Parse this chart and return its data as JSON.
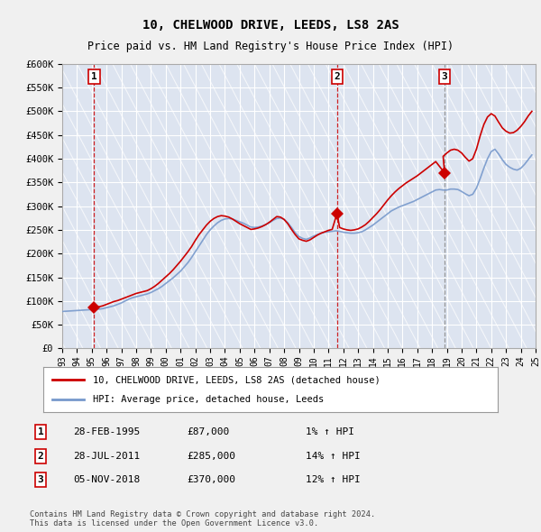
{
  "title": "10, CHELWOOD DRIVE, LEEDS, LS8 2AS",
  "subtitle": "Price paid vs. HM Land Registry's House Price Index (HPI)",
  "ylim": [
    0,
    600000
  ],
  "yticks": [
    0,
    50000,
    100000,
    150000,
    200000,
    250000,
    300000,
    350000,
    400000,
    450000,
    500000,
    550000,
    600000
  ],
  "ytick_labels": [
    "£0",
    "£50K",
    "£100K",
    "£150K",
    "£200K",
    "£250K",
    "£300K",
    "£350K",
    "£400K",
    "£450K",
    "£500K",
    "£550K",
    "£600K"
  ],
  "background_color": "#f0f0f0",
  "plot_bg_color": "#dde4f0",
  "grid_color": "#ffffff",
  "hpi_color": "#7799cc",
  "price_color": "#cc0000",
  "sale_points": [
    {
      "year": 1995.16,
      "price": 87000,
      "label": "1",
      "vline_color": "#cc0000",
      "vline_style": "--"
    },
    {
      "year": 2011.58,
      "price": 285000,
      "label": "2",
      "vline_color": "#cc0000",
      "vline_style": "--"
    },
    {
      "year": 2018.85,
      "price": 370000,
      "label": "3",
      "vline_color": "#888888",
      "vline_style": "--"
    }
  ],
  "legend_house_label": "10, CHELWOOD DRIVE, LEEDS, LS8 2AS (detached house)",
  "legend_hpi_label": "HPI: Average price, detached house, Leeds",
  "table_rows": [
    {
      "num": "1",
      "date": "28-FEB-1995",
      "price": "£87,000",
      "hpi": "1% ↑ HPI"
    },
    {
      "num": "2",
      "date": "28-JUL-2011",
      "price": "£285,000",
      "hpi": "14% ↑ HPI"
    },
    {
      "num": "3",
      "date": "05-NOV-2018",
      "price": "£370,000",
      "hpi": "12% ↑ HPI"
    }
  ],
  "footnote": "Contains HM Land Registry data © Crown copyright and database right 2024.\nThis data is licensed under the Open Government Licence v3.0.",
  "hpi_data_years": [
    1993.0,
    1993.25,
    1993.5,
    1993.75,
    1994.0,
    1994.25,
    1994.5,
    1994.75,
    1995.0,
    1995.25,
    1995.5,
    1995.75,
    1996.0,
    1996.25,
    1996.5,
    1996.75,
    1997.0,
    1997.25,
    1997.5,
    1997.75,
    1998.0,
    1998.25,
    1998.5,
    1998.75,
    1999.0,
    1999.25,
    1999.5,
    1999.75,
    2000.0,
    2000.25,
    2000.5,
    2000.75,
    2001.0,
    2001.25,
    2001.5,
    2001.75,
    2002.0,
    2002.25,
    2002.5,
    2002.75,
    2003.0,
    2003.25,
    2003.5,
    2003.75,
    2004.0,
    2004.25,
    2004.5,
    2004.75,
    2005.0,
    2005.25,
    2005.5,
    2005.75,
    2006.0,
    2006.25,
    2006.5,
    2006.75,
    2007.0,
    2007.25,
    2007.5,
    2007.75,
    2008.0,
    2008.25,
    2008.5,
    2008.75,
    2009.0,
    2009.25,
    2009.5,
    2009.75,
    2010.0,
    2010.25,
    2010.5,
    2010.75,
    2011.0,
    2011.25,
    2011.5,
    2011.75,
    2012.0,
    2012.25,
    2012.5,
    2012.75,
    2013.0,
    2013.25,
    2013.5,
    2013.75,
    2014.0,
    2014.25,
    2014.5,
    2014.75,
    2015.0,
    2015.25,
    2015.5,
    2015.75,
    2016.0,
    2016.25,
    2016.5,
    2016.75,
    2017.0,
    2017.25,
    2017.5,
    2017.75,
    2018.0,
    2018.25,
    2018.5,
    2018.75,
    2019.0,
    2019.25,
    2019.5,
    2019.75,
    2020.0,
    2020.25,
    2020.5,
    2020.75,
    2021.0,
    2021.25,
    2021.5,
    2021.75,
    2022.0,
    2022.25,
    2022.5,
    2022.75,
    2023.0,
    2023.25,
    2023.5,
    2023.75,
    2024.0,
    2024.25,
    2024.5,
    2024.75
  ],
  "hpi_data_values": [
    78000,
    78500,
    79000,
    79500,
    80000,
    80500,
    81000,
    81500,
    82000,
    82500,
    83000,
    84000,
    86000,
    88000,
    90000,
    93000,
    96000,
    100000,
    104000,
    107000,
    109000,
    111000,
    113000,
    115000,
    118000,
    122000,
    126000,
    131000,
    137000,
    143000,
    149000,
    156000,
    163000,
    172000,
    181000,
    192000,
    204000,
    216000,
    228000,
    240000,
    250000,
    258000,
    265000,
    270000,
    273000,
    274000,
    273000,
    270000,
    267000,
    264000,
    260000,
    256000,
    255000,
    256000,
    258000,
    261000,
    265000,
    270000,
    274000,
    275000,
    272000,
    265000,
    255000,
    244000,
    236000,
    232000,
    230000,
    233000,
    237000,
    240000,
    243000,
    245000,
    246000,
    247000,
    248000,
    247000,
    245000,
    244000,
    243000,
    243000,
    244000,
    246000,
    250000,
    255000,
    260000,
    266000,
    272000,
    278000,
    284000,
    290000,
    294000,
    298000,
    301000,
    304000,
    307000,
    310000,
    314000,
    318000,
    322000,
    326000,
    330000,
    334000,
    335000,
    334000,
    334000,
    336000,
    336000,
    335000,
    331000,
    326000,
    322000,
    325000,
    338000,
    358000,
    380000,
    400000,
    415000,
    420000,
    410000,
    398000,
    388000,
    382000,
    378000,
    376000,
    380000,
    388000,
    398000,
    408000
  ],
  "price_data_years": [
    1993.0,
    1993.25,
    1993.5,
    1993.75,
    1994.0,
    1994.25,
    1994.5,
    1994.75,
    1995.16,
    1995.5,
    1995.75,
    1996.0,
    1996.25,
    1996.5,
    1996.75,
    1997.0,
    1997.25,
    1997.5,
    1997.75,
    1998.0,
    1998.25,
    1998.5,
    1998.75,
    1999.0,
    1999.25,
    1999.5,
    1999.75,
    2000.0,
    2000.25,
    2000.5,
    2000.75,
    2001.0,
    2001.25,
    2001.5,
    2001.75,
    2002.0,
    2002.25,
    2002.5,
    2002.75,
    2003.0,
    2003.25,
    2003.5,
    2003.75,
    2004.0,
    2004.25,
    2004.5,
    2004.75,
    2005.0,
    2005.25,
    2005.5,
    2005.75,
    2006.0,
    2006.25,
    2006.5,
    2006.75,
    2007.0,
    2007.25,
    2007.5,
    2007.75,
    2008.0,
    2008.25,
    2008.5,
    2008.75,
    2009.0,
    2009.25,
    2009.5,
    2009.75,
    2010.0,
    2010.25,
    2010.5,
    2010.75,
    2011.0,
    2011.25,
    2011.58,
    2011.75,
    2012.0,
    2012.25,
    2012.5,
    2012.75,
    2013.0,
    2013.25,
    2013.5,
    2013.75,
    2014.0,
    2014.25,
    2014.5,
    2014.75,
    2015.0,
    2015.25,
    2015.5,
    2015.75,
    2016.0,
    2016.25,
    2016.5,
    2016.75,
    2017.0,
    2017.25,
    2017.5,
    2017.75,
    2018.0,
    2018.25,
    2018.85,
    2018.75,
    2019.0,
    2019.25,
    2019.5,
    2019.75,
    2020.0,
    2020.25,
    2020.5,
    2020.75,
    2021.0,
    2021.25,
    2021.5,
    2021.75,
    2022.0,
    2022.25,
    2022.5,
    2022.75,
    2023.0,
    2023.25,
    2023.5,
    2023.75,
    2024.0,
    2024.25,
    2024.5,
    2024.75
  ],
  "price_data_values": [
    78000,
    78500,
    79000,
    79500,
    80000,
    80500,
    81000,
    81500,
    87000,
    88000,
    90000,
    93000,
    96000,
    99000,
    101000,
    104000,
    107000,
    110000,
    113000,
    116000,
    118000,
    120000,
    122000,
    126000,
    131000,
    137000,
    144000,
    151000,
    158000,
    166000,
    175000,
    184000,
    194000,
    204000,
    215000,
    228000,
    240000,
    250000,
    260000,
    268000,
    274000,
    278000,
    280000,
    279000,
    277000,
    273000,
    268000,
    263000,
    259000,
    255000,
    251000,
    252000,
    254000,
    257000,
    261000,
    266000,
    272000,
    278000,
    277000,
    272000,
    263000,
    251000,
    240000,
    231000,
    228000,
    226000,
    229000,
    234000,
    239000,
    243000,
    246000,
    249000,
    251000,
    285000,
    255000,
    252000,
    250000,
    249000,
    250000,
    252000,
    256000,
    261000,
    268000,
    276000,
    284000,
    293000,
    303000,
    313000,
    322000,
    330000,
    337000,
    343000,
    349000,
    354000,
    359000,
    364000,
    370000,
    376000,
    382000,
    388000,
    394000,
    370000,
    405000,
    412000,
    418000,
    420000,
    418000,
    412000,
    403000,
    395000,
    400000,
    420000,
    448000,
    472000,
    488000,
    495000,
    490000,
    477000,
    465000,
    458000,
    454000,
    455000,
    460000,
    468000,
    478000,
    490000,
    500000
  ],
  "x_tick_years": [
    "93",
    "94",
    "95",
    "96",
    "97",
    "98",
    "99",
    "00",
    "01",
    "02",
    "03",
    "04",
    "05",
    "06",
    "07",
    "08",
    "09",
    "10",
    "11",
    "12",
    "13",
    "14",
    "15",
    "16",
    "17",
    "18",
    "19",
    "20",
    "21",
    "22",
    "23",
    "24",
    "25"
  ],
  "x_tick_positions": [
    1993,
    1994,
    1995,
    1996,
    1997,
    1998,
    1999,
    2000,
    2001,
    2002,
    2003,
    2004,
    2005,
    2006,
    2007,
    2008,
    2009,
    2010,
    2011,
    2012,
    2013,
    2014,
    2015,
    2016,
    2017,
    2018,
    2019,
    2020,
    2021,
    2022,
    2023,
    2024,
    2025
  ]
}
